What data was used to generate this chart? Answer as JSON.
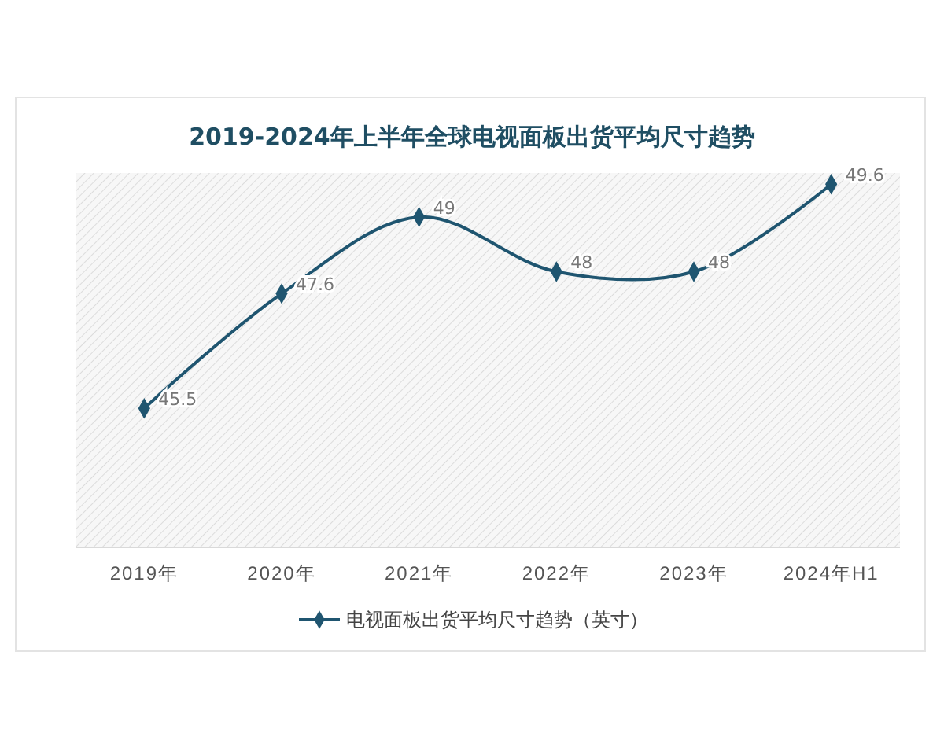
{
  "chart_data": {
    "type": "line",
    "title": "2019-2024年上半年全球电视面板出货平均尺寸趋势",
    "categories": [
      "2019年",
      "2020年",
      "2021年",
      "2022年",
      "2023年",
      "2024年H1"
    ],
    "series": [
      {
        "name": "电视面板出货平均尺寸趋势（英寸）",
        "color": "#1f5570",
        "values": [
          45.5,
          47.6,
          49,
          48,
          48,
          49.6
        ]
      }
    ],
    "data_labels": true,
    "marker": "diamond",
    "line_style": "solid",
    "legend": "bottom",
    "grid": false
  }
}
